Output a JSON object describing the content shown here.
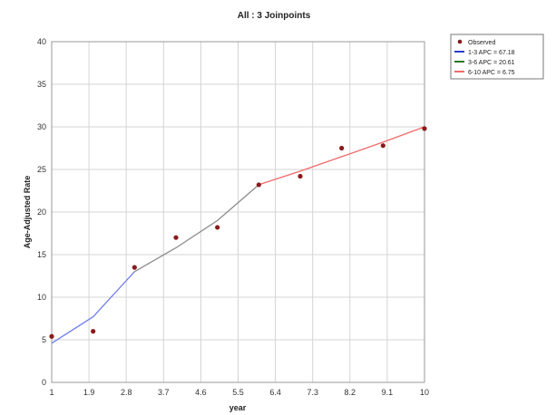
{
  "chart_data": {
    "type": "line",
    "title": "All : 3 Joinpoints",
    "xlabel": "year",
    "ylabel": "Age-Adjusted Rate",
    "xlim": [
      1,
      10
    ],
    "ylim": [
      0,
      40
    ],
    "x_ticks": [
      "1",
      "1.9",
      "2.8",
      "3.7",
      "4.6",
      "5.5",
      "6.4",
      "7.3",
      "8.2",
      "9.1",
      "10"
    ],
    "y_ticks": [
      0,
      5,
      10,
      15,
      20,
      25,
      30,
      35,
      40
    ],
    "grid": true,
    "legend_position": "top-right",
    "observed": {
      "name": "Observed",
      "color": "#8b1a1a",
      "x": [
        1,
        2,
        3,
        4,
        5,
        6,
        7,
        8,
        9,
        10
      ],
      "y": [
        5.4,
        6.0,
        13.5,
        17.0,
        18.2,
        23.2,
        24.2,
        27.5,
        27.8,
        29.8
      ]
    },
    "series": [
      {
        "name": "1-3 APC = 67.18",
        "color": "#6f7fe8",
        "x": [
          1,
          2,
          3
        ],
        "y": [
          4.6,
          7.7,
          13.0
        ]
      },
      {
        "name": "3-6 APC = 20.61",
        "color": "#8c8c8c",
        "x": [
          3,
          4,
          5,
          6
        ],
        "y": [
          13.0,
          15.8,
          19.0,
          23.2
        ]
      },
      {
        "name": "6-10 APC = 6.75",
        "color": "#ee6a6a",
        "x": [
          6,
          7,
          8,
          9,
          10
        ],
        "y": [
          23.2,
          24.8,
          26.5,
          28.2,
          30.0
        ]
      }
    ],
    "legend_colors": [
      "#2a3ad0",
      "#1e7a1e",
      "#ee6a6a"
    ]
  }
}
